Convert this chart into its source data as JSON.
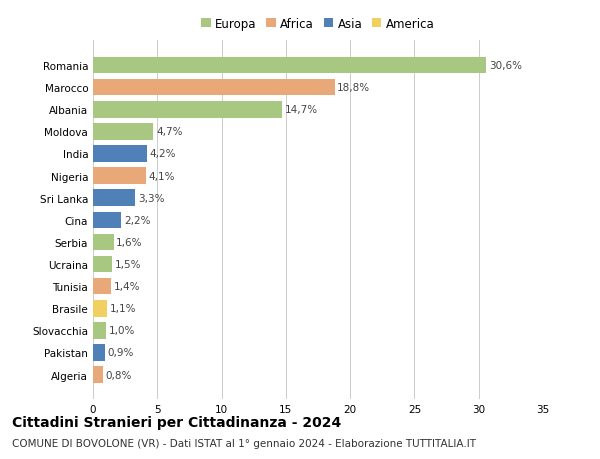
{
  "countries": [
    "Romania",
    "Marocco",
    "Albania",
    "Moldova",
    "India",
    "Nigeria",
    "Sri Lanka",
    "Cina",
    "Serbia",
    "Ucraina",
    "Tunisia",
    "Brasile",
    "Slovacchia",
    "Pakistan",
    "Algeria"
  ],
  "values": [
    30.6,
    18.8,
    14.7,
    4.7,
    4.2,
    4.1,
    3.3,
    2.2,
    1.6,
    1.5,
    1.4,
    1.1,
    1.0,
    0.9,
    0.8
  ],
  "continents": [
    "Europa",
    "Africa",
    "Europa",
    "Europa",
    "Asia",
    "Africa",
    "Asia",
    "Asia",
    "Europa",
    "Europa",
    "Africa",
    "America",
    "Europa",
    "Asia",
    "Africa"
  ],
  "colors": {
    "Europa": "#a8c882",
    "Africa": "#e8a878",
    "Asia": "#5080b8",
    "America": "#f0d060"
  },
  "legend_order": [
    "Europa",
    "Africa",
    "Asia",
    "America"
  ],
  "xlim": [
    0,
    35
  ],
  "xticks": [
    0,
    5,
    10,
    15,
    20,
    25,
    30,
    35
  ],
  "title": "Cittadini Stranieri per Cittadinanza - 2024",
  "subtitle": "COMUNE DI BOVOLONE (VR) - Dati ISTAT al 1° gennaio 2024 - Elaborazione TUTTITALIA.IT",
  "background_color": "#ffffff",
  "grid_color": "#cccccc",
  "bar_height": 0.75,
  "label_fontsize": 7.5,
  "tick_fontsize": 7.5,
  "title_fontsize": 10,
  "subtitle_fontsize": 7.5,
  "legend_fontsize": 8.5
}
